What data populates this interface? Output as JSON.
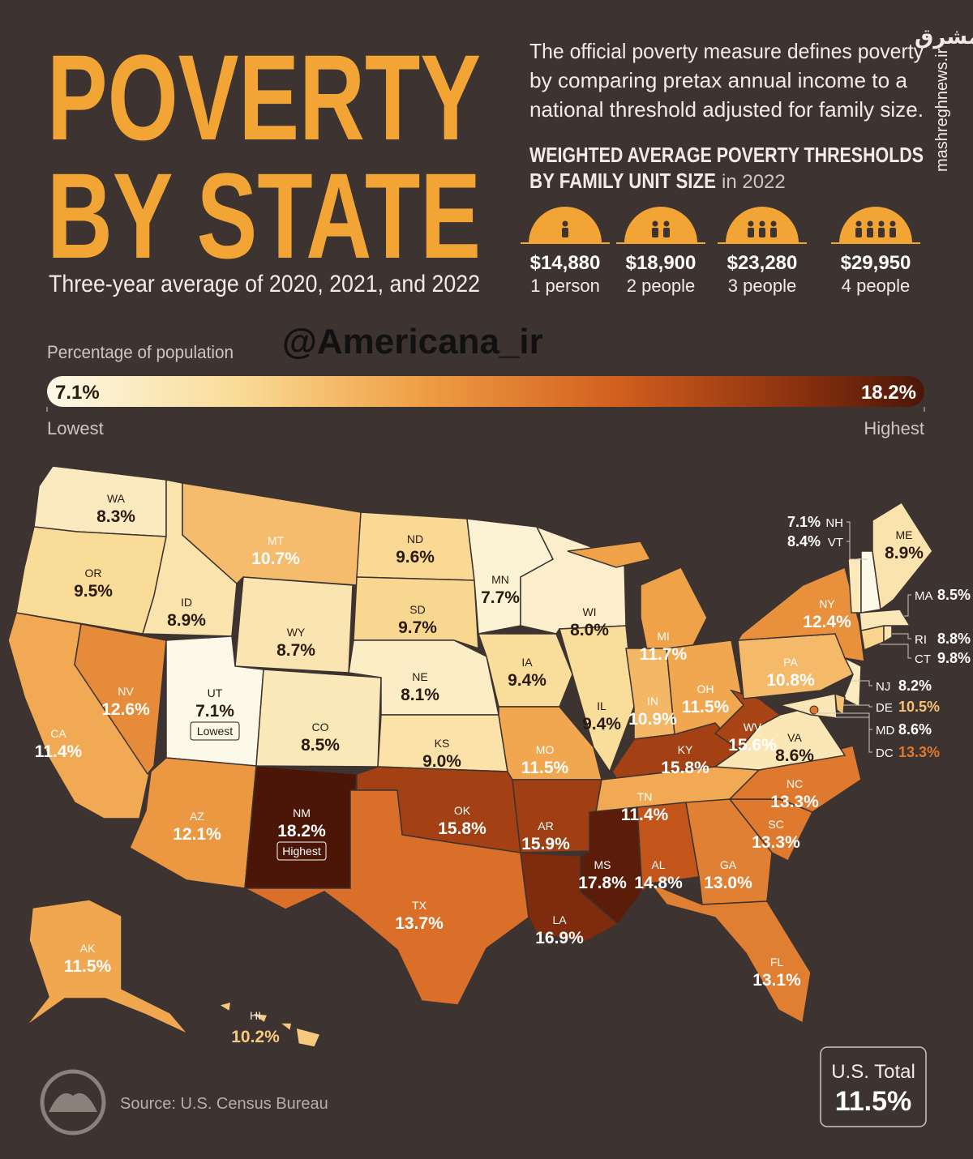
{
  "header": {
    "title_line1": "POVERTY",
    "title_line2": "BY STATE",
    "subtitle": "Three-year average of 2020, 2021, and 2022",
    "description": [
      "The official poverty measure defines poverty",
      "by comparing pretax annual income to a",
      "national threshold adjusted for family size."
    ],
    "thresholds_title": [
      "WEIGHTED AVERAGE POVERTY THRESHOLDS",
      "BY FAMILY UNIT SIZE"
    ],
    "thresholds_year": "in 2022"
  },
  "thresholds": [
    {
      "amount": "$14,880",
      "label": "1 person"
    },
    {
      "amount": "$18,900",
      "label": "2 people"
    },
    {
      "amount": "$23,280",
      "label": "3 people"
    },
    {
      "amount": "$29,950",
      "label": "4 people"
    }
  ],
  "watermarks": {
    "handle": "@Americana_ir",
    "site": "mashreghnews.ir",
    "logo": "مشرق"
  },
  "legend": {
    "title": "Percentage of population",
    "min": {
      "value": 7.1,
      "label": "7.1%"
    },
    "max": {
      "value": 18.2,
      "label": "18.2%"
    },
    "min_label": "Lowest",
    "max_label": "Highest"
  },
  "states": [
    {
      "abbr": "WA",
      "value": 8.3,
      "label": "8.3%"
    },
    {
      "abbr": "OR",
      "value": 9.5,
      "label": "9.5%"
    },
    {
      "abbr": "CA",
      "value": 11.4,
      "label": "11.4%"
    },
    {
      "abbr": "NV",
      "value": 12.6,
      "label": "12.6%"
    },
    {
      "abbr": "ID",
      "value": 8.9,
      "label": "8.9%"
    },
    {
      "abbr": "MT",
      "value": 10.7,
      "label": "10.7%"
    },
    {
      "abbr": "WY",
      "value": 8.7,
      "label": "8.7%"
    },
    {
      "abbr": "UT",
      "value": 7.1,
      "label": "7.1%",
      "note": "Lowest"
    },
    {
      "abbr": "CO",
      "value": 8.5,
      "label": "8.5%"
    },
    {
      "abbr": "AZ",
      "value": 12.1,
      "label": "12.1%"
    },
    {
      "abbr": "NM",
      "value": 18.2,
      "label": "18.2%",
      "note": "Highest"
    },
    {
      "abbr": "ND",
      "value": 9.6,
      "label": "9.6%"
    },
    {
      "abbr": "SD",
      "value": 9.7,
      "label": "9.7%"
    },
    {
      "abbr": "NE",
      "value": 8.1,
      "label": "8.1%"
    },
    {
      "abbr": "KS",
      "value": 9.0,
      "label": "9.0%"
    },
    {
      "abbr": "OK",
      "value": 15.8,
      "label": "15.8%"
    },
    {
      "abbr": "TX",
      "value": 13.7,
      "label": "13.7%"
    },
    {
      "abbr": "MN",
      "value": 7.7,
      "label": "7.7%"
    },
    {
      "abbr": "IA",
      "value": 9.4,
      "label": "9.4%"
    },
    {
      "abbr": "MO",
      "value": 11.5,
      "label": "11.5%"
    },
    {
      "abbr": "AR",
      "value": 15.9,
      "label": "15.9%"
    },
    {
      "abbr": "LA",
      "value": 16.9,
      "label": "16.9%"
    },
    {
      "abbr": "WI",
      "value": 8.0,
      "label": "8.0%"
    },
    {
      "abbr": "IL",
      "value": 9.4,
      "label": "9.4%"
    },
    {
      "abbr": "MI",
      "value": 11.7,
      "label": "11.7%"
    },
    {
      "abbr": "IN",
      "value": 10.9,
      "label": "10.9%"
    },
    {
      "abbr": "OH",
      "value": 11.5,
      "label": "11.5%"
    },
    {
      "abbr": "KY",
      "value": 15.8,
      "label": "15.8%"
    },
    {
      "abbr": "TN",
      "value": 11.4,
      "label": "11.4%"
    },
    {
      "abbr": "MS",
      "value": 17.8,
      "label": "17.8%"
    },
    {
      "abbr": "AL",
      "value": 14.8,
      "label": "14.8%"
    },
    {
      "abbr": "GA",
      "value": 13.0,
      "label": "13.0%"
    },
    {
      "abbr": "FL",
      "value": 13.1,
      "label": "13.1%"
    },
    {
      "abbr": "SC",
      "value": 13.3,
      "label": "13.3%"
    },
    {
      "abbr": "NC",
      "value": 13.3,
      "label": "13.3%"
    },
    {
      "abbr": "VA",
      "value": 8.6,
      "label": "8.6%"
    },
    {
      "abbr": "WV",
      "value": 15.6,
      "label": "15.6%"
    },
    {
      "abbr": "PA",
      "value": 10.8,
      "label": "10.8%"
    },
    {
      "abbr": "NY",
      "value": 12.4,
      "label": "12.4%"
    },
    {
      "abbr": "NJ",
      "value": 8.2,
      "label": "8.2%"
    },
    {
      "abbr": "DE",
      "value": 10.5,
      "label": "10.5%"
    },
    {
      "abbr": "MD",
      "value": 8.6,
      "label": "8.6%"
    },
    {
      "abbr": "DC",
      "value": 13.3,
      "label": "13.3%"
    },
    {
      "abbr": "CT",
      "value": 9.8,
      "label": "9.8%"
    },
    {
      "abbr": "RI",
      "value": 8.8,
      "label": "8.8%"
    },
    {
      "abbr": "MA",
      "value": 8.5,
      "label": "8.5%"
    },
    {
      "abbr": "VT",
      "value": 8.4,
      "label": "8.4%"
    },
    {
      "abbr": "NH",
      "value": 7.1,
      "label": "7.1%"
    },
    {
      "abbr": "ME",
      "value": 8.9,
      "label": "8.9%"
    },
    {
      "abbr": "AK",
      "value": 11.5,
      "label": "11.5%"
    },
    {
      "abbr": "HI",
      "value": 10.2,
      "label": "10.2%"
    }
  ],
  "source": "Source: U.S. Census Bureau",
  "total": {
    "title": "U.S. Total",
    "value": 11.5,
    "label": "11.5%"
  }
}
